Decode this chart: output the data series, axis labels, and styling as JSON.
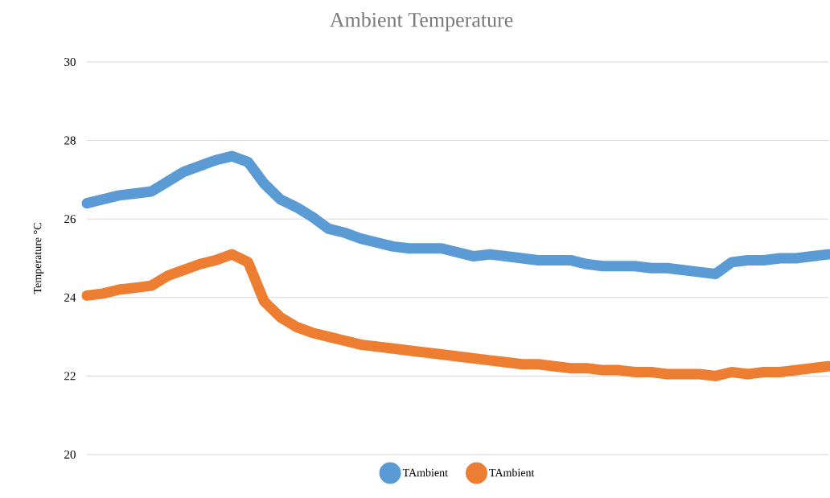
{
  "chart_data": {
    "type": "line",
    "title": "Ambient Temperature",
    "ylabel": "Temperature °C",
    "categories": [
      null,
      null,
      null,
      null,
      null,
      null,
      null,
      null,
      null,
      null,
      null,
      null,
      null,
      null,
      null,
      null,
      null,
      null,
      null,
      null,
      null,
      null,
      null,
      null,
      null,
      null,
      null,
      null,
      null,
      null,
      null,
      null,
      null,
      null,
      null,
      null,
      null,
      null,
      null,
      null,
      null,
      null,
      null,
      null,
      null,
      null,
      null
    ],
    "series": [
      {
        "name": "TAmbient",
        "color": "#5b9bd5",
        "values": [
          26.4,
          26.5,
          26.6,
          26.65,
          26.7,
          26.95,
          27.2,
          27.35,
          27.5,
          27.6,
          27.45,
          26.9,
          26.5,
          26.3,
          26.05,
          25.75,
          25.65,
          25.5,
          25.4,
          25.3,
          25.25,
          25.25,
          25.25,
          25.15,
          25.05,
          25.1,
          25.05,
          25.0,
          24.95,
          24.95,
          24.95,
          24.85,
          24.8,
          24.8,
          24.8,
          24.75,
          24.75,
          24.7,
          24.65,
          24.6,
          24.9,
          24.95,
          24.95,
          25.0,
          25.0,
          25.05,
          25.1
        ]
      },
      {
        "name": "TAmbient",
        "color": "#ed7d31",
        "values": [
          24.05,
          24.1,
          24.2,
          24.25,
          24.3,
          24.55,
          24.7,
          24.85,
          24.95,
          25.1,
          24.9,
          23.9,
          23.5,
          23.25,
          23.1,
          23.0,
          22.9,
          22.8,
          22.75,
          22.7,
          22.65,
          22.6,
          22.55,
          22.5,
          22.45,
          22.4,
          22.35,
          22.3,
          22.3,
          22.25,
          22.2,
          22.2,
          22.15,
          22.15,
          22.1,
          22.1,
          22.05,
          22.05,
          22.05,
          22.0,
          22.1,
          22.05,
          22.1,
          22.1,
          22.15,
          22.2,
          22.25
        ]
      }
    ],
    "ylim": [
      20,
      30
    ],
    "yticks": [
      20,
      22,
      24,
      26,
      28,
      30
    ],
    "grid": "y",
    "legend": "bottom"
  }
}
